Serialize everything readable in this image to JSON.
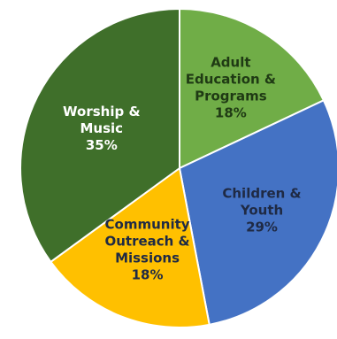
{
  "chart_data": {
    "type": "pie",
    "title": "",
    "start_angle_deg": 0,
    "direction": "clockwise",
    "slices": [
      {
        "label": [
          "Adult",
          "Education &",
          "Programs"
        ],
        "value": 18,
        "value_label": "18%",
        "color": "#70ad47",
        "text_color": "#1f3a14"
      },
      {
        "label": [
          "Children &",
          "Youth"
        ],
        "value": 29,
        "value_label": "29%",
        "color": "#4472c4",
        "text_color": "#1f2a44"
      },
      {
        "label": [
          "Community",
          "Outreach &",
          "Missions"
        ],
        "value": 18,
        "value_label": "18%",
        "color": "#ffc000",
        "text_color": "#1f2a44"
      },
      {
        "label": [
          "Worship &",
          "Music"
        ],
        "value": 35,
        "value_label": "35%",
        "color": "#3f6f2a",
        "text_color": "#ffffff"
      }
    ],
    "legend": "none"
  }
}
